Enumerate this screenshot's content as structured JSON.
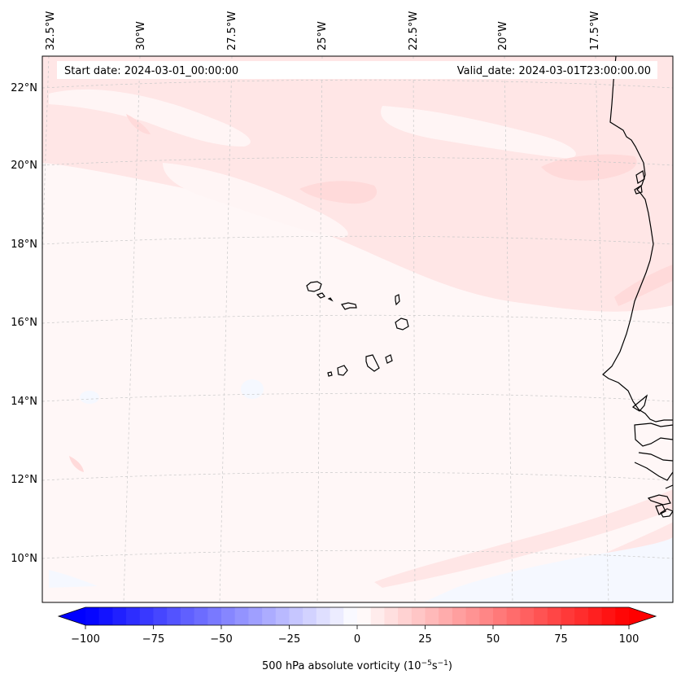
{
  "header": {
    "start_date": "Start date: 2024-03-01_00:00:00",
    "valid_date": "Valid_date: 2024-03-01T23:00:00.00"
  },
  "lon_labels": [
    "32.5°W",
    "30°W",
    "27.5°W",
    "25°W",
    "22.5°W",
    "20°W",
    "17.5°W"
  ],
  "lat_labels": [
    "22°N",
    "20°N",
    "18°N",
    "16°N",
    "14°N",
    "12°N",
    "10°N"
  ],
  "colorbar": {
    "label": "500 hPa absolute vorticity (10",
    "label_exp1": "−5",
    "label_mid": "s",
    "label_exp2": "−1",
    "label_end": ")",
    "ticks": [
      "−100",
      "−75",
      "−50",
      "−25",
      "0",
      "25",
      "50",
      "75",
      "100"
    ],
    "min": -100,
    "max": 100,
    "step": 5,
    "low_color": "#0000ff",
    "high_color": "#ff0000",
    "extend": "both"
  },
  "map": {
    "field": "500 hPa absolute vorticity",
    "region": "Eastern tropical Atlantic, Cabo Verde islands and West African coast"
  }
}
